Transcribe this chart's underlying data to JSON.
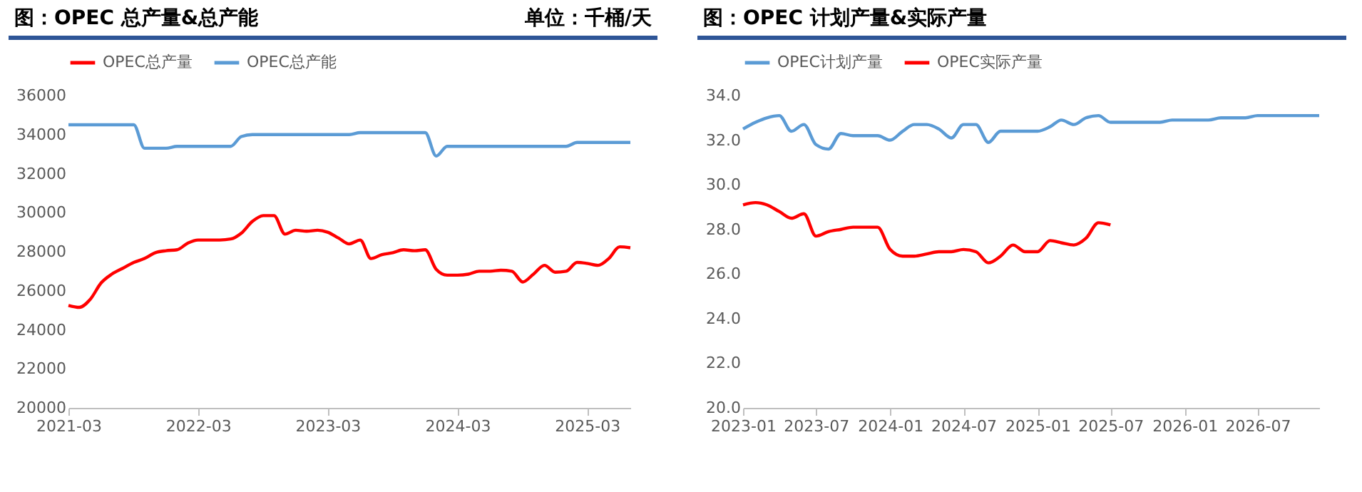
{
  "chart_data": [
    {
      "type": "line",
      "title": "图：OPEC 总产量&总产能",
      "annotations": [
        "单位：千桶/天"
      ],
      "x": [
        "2021-03",
        "2021-04",
        "2021-05",
        "2021-06",
        "2021-07",
        "2021-08",
        "2021-09",
        "2021-10",
        "2021-11",
        "2021-12",
        "2022-01",
        "2022-02",
        "2022-03",
        "2022-04",
        "2022-05",
        "2022-06",
        "2022-07",
        "2022-08",
        "2022-09",
        "2022-10",
        "2022-11",
        "2022-12",
        "2023-01",
        "2023-02",
        "2023-03",
        "2023-04",
        "2023-05",
        "2023-06",
        "2023-07",
        "2023-08",
        "2023-09",
        "2023-10",
        "2023-11",
        "2023-12",
        "2024-01",
        "2024-02",
        "2024-03",
        "2024-04",
        "2024-05",
        "2024-06",
        "2024-07",
        "2024-08",
        "2024-09",
        "2024-10",
        "2024-11",
        "2024-12",
        "2025-01",
        "2025-02",
        "2025-03",
        "2025-04",
        "2025-05",
        "2025-06",
        "2025-07"
      ],
      "series": [
        {
          "name": "OPEC总产量",
          "color": "#ff0000",
          "values": [
            25250,
            25150,
            25550,
            26400,
            26850,
            27150,
            27450,
            27650,
            27950,
            28050,
            28100,
            28450,
            28600,
            28600,
            28600,
            28650,
            28950,
            29550,
            29850,
            29850,
            28900,
            29100,
            29050,
            29100,
            29000,
            28700,
            28400,
            28600,
            27650,
            27850,
            27950,
            28100,
            28050,
            28100,
            27100,
            26800,
            26800,
            26850,
            27000,
            27000,
            27050,
            27000,
            26450,
            26850,
            27300,
            26950,
            27000,
            27450,
            27400,
            27300,
            27650,
            28250,
            28200
          ]
        },
        {
          "name": "OPEC总产能",
          "color": "#5b9bd5",
          "values": [
            34500,
            34500,
            34500,
            34500,
            34500,
            34500,
            34500,
            33300,
            33300,
            33300,
            33400,
            33400,
            33400,
            33400,
            33400,
            33400,
            33900,
            34000,
            34000,
            34000,
            34000,
            34000,
            34000,
            34000,
            34000,
            34000,
            34000,
            34100,
            34100,
            34100,
            34100,
            34100,
            34100,
            34100,
            32900,
            33400,
            33400,
            33400,
            33400,
            33400,
            33400,
            33400,
            33400,
            33400,
            33400,
            33400,
            33400,
            33600,
            33600,
            33600,
            33600,
            33600,
            33600
          ]
        }
      ],
      "xlim": [
        "2021-03",
        "2025-07"
      ],
      "xticks": [
        "2021-03",
        "2022-03",
        "2023-03",
        "2024-03",
        "2025-03"
      ],
      "ylim": [
        20000,
        36000
      ],
      "yticks": [
        20000,
        22000,
        24000,
        26000,
        28000,
        30000,
        32000,
        34000,
        36000
      ],
      "grid": false,
      "legend": "top"
    },
    {
      "type": "line",
      "title": "图：OPEC 计划产量&实际产量",
      "x": [
        "2023-01",
        "2023-02",
        "2023-03",
        "2023-04",
        "2023-05",
        "2023-06",
        "2023-07",
        "2023-08",
        "2023-09",
        "2023-10",
        "2023-11",
        "2023-12",
        "2024-01",
        "2024-02",
        "2024-03",
        "2024-04",
        "2024-05",
        "2024-06",
        "2024-07",
        "2024-08",
        "2024-09",
        "2024-10",
        "2024-11",
        "2024-12",
        "2025-01",
        "2025-02",
        "2025-03",
        "2025-04",
        "2025-05",
        "2025-06",
        "2025-07",
        "2025-08",
        "2025-09",
        "2025-10",
        "2025-11",
        "2025-12",
        "2026-01",
        "2026-02",
        "2026-03",
        "2026-04",
        "2026-05",
        "2026-06",
        "2026-07",
        "2026-08",
        "2026-09",
        "2026-10",
        "2026-11",
        "2026-12"
      ],
      "series": [
        {
          "name": "OPEC计划产量",
          "color": "#5b9bd5",
          "values": [
            32.5,
            32.8,
            33.0,
            33.1,
            32.4,
            32.7,
            31.8,
            31.6,
            32.3,
            32.2,
            32.2,
            32.2,
            32.0,
            32.4,
            32.7,
            32.7,
            32.5,
            32.1,
            32.7,
            32.7,
            31.9,
            32.4,
            32.4,
            32.4,
            32.4,
            32.6,
            32.9,
            32.7,
            33.0,
            33.1,
            32.8,
            32.8,
            32.8,
            32.8,
            32.8,
            32.9,
            32.9,
            32.9,
            32.9,
            33.0,
            33.0,
            33.0,
            33.1,
            33.1,
            33.1,
            33.1,
            33.1,
            33.1
          ]
        },
        {
          "name": "OPEC实际产量",
          "color": "#ff0000",
          "values": [
            29.1,
            29.2,
            29.1,
            28.8,
            28.5,
            28.7,
            27.7,
            27.9,
            28.0,
            28.1,
            28.1,
            28.1,
            27.1,
            26.8,
            26.8,
            26.9,
            27.0,
            27.0,
            27.1,
            27.0,
            26.5,
            26.8,
            27.3,
            27.0,
            27.0,
            27.5,
            27.4,
            27.3,
            27.6,
            28.3,
            28.2,
            null,
            null,
            null,
            null,
            null,
            null,
            null,
            null,
            null,
            null,
            null,
            null,
            null,
            null,
            null,
            null,
            null
          ]
        }
      ],
      "xlim": [
        "2023-01",
        "2026-12"
      ],
      "xticks": [
        "2023-01",
        "2023-07",
        "2024-01",
        "2024-07",
        "2025-01",
        "2025-07",
        "2026-01",
        "2026-07"
      ],
      "ylim": [
        20,
        34
      ],
      "yticks": [
        {
          "value": 20,
          "label": "20.0"
        },
        {
          "value": 22,
          "label": "22.0"
        },
        {
          "value": 24,
          "label": "24.0"
        },
        {
          "value": 26,
          "label": "26.0"
        },
        {
          "value": 28,
          "label": "28.0"
        },
        {
          "value": 30,
          "label": "30.0"
        },
        {
          "value": 32,
          "label": "32.0"
        },
        {
          "value": 34,
          "label": "34.0"
        }
      ],
      "grid": false,
      "legend": "top"
    }
  ]
}
